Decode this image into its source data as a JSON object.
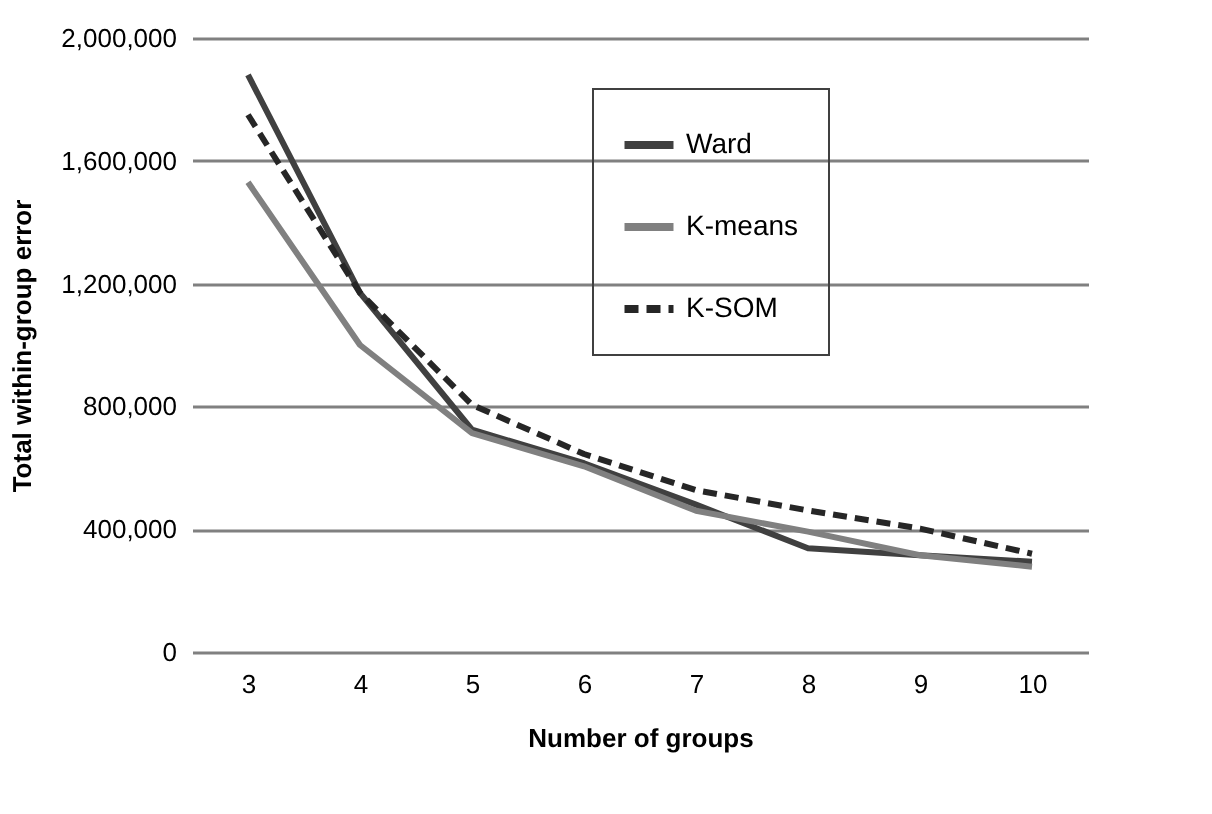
{
  "chart_data": {
    "type": "line",
    "xlabel": "Number of groups",
    "ylabel": "Total within-group error",
    "categories": [
      "3",
      "4",
      "5",
      "6",
      "7",
      "8",
      "9",
      "10"
    ],
    "series": [
      {
        "name": "Ward",
        "color": "#404040",
        "line_style": "solid",
        "values": [
          1880000,
          1170000,
          724000,
          615000,
          480000,
          338000,
          315000,
          294000
        ]
      },
      {
        "name": "K-means",
        "color": "#808080",
        "line_style": "solid",
        "values": [
          1530000,
          1000000,
          713000,
          605000,
          460000,
          392000,
          315000,
          278000
        ]
      },
      {
        "name": "K-SOM",
        "color": "#262626",
        "line_style": "dashed",
        "values": [
          1750000,
          1170000,
          805000,
          645000,
          527000,
          461000,
          402000,
          320000
        ]
      }
    ],
    "ylim": [
      0,
      2000000
    ],
    "yticks": [
      0,
      {
        "value": 400000,
        "label": "400,000"
      },
      {
        "value": 800000,
        "label": "800,000"
      },
      {
        "value": 1200000,
        "label": "1,200,000"
      },
      {
        "value": 1600000,
        "label": "1,600,000"
      },
      {
        "value": 2000000,
        "label": "2,000,000"
      }
    ],
    "grid": "y",
    "legend": "top right",
    "marker": "none"
  }
}
